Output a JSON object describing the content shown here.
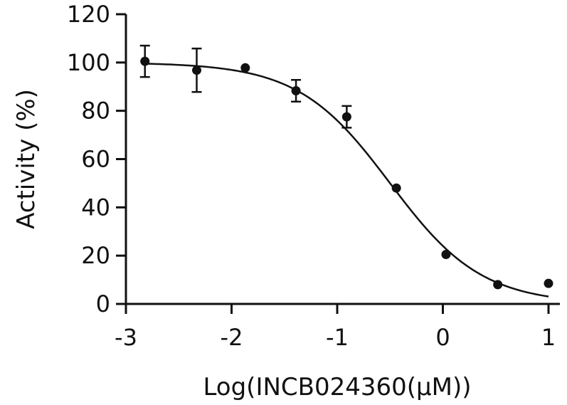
{
  "chart_data": {
    "type": "scatter",
    "title": "",
    "xlabel": "Log(INCB024360(μM))",
    "ylabel": "Activity (%)",
    "xlim": [
      -3,
      1
    ],
    "ylim": [
      0,
      120
    ],
    "x_ticks": [
      -3,
      -2,
      -1,
      0,
      1
    ],
    "y_ticks": [
      0,
      20,
      40,
      60,
      80,
      100,
      120
    ],
    "x_tick_labels": [
      "-3",
      "-2",
      "-1",
      "0",
      "1"
    ],
    "y_tick_labels": [
      "0",
      "20",
      "40",
      "60",
      "80",
      "100",
      "120"
    ],
    "grid": false,
    "legend": "none",
    "series": [
      {
        "x": [
          -2.82,
          -2.33,
          -1.87,
          -1.39,
          -0.91,
          -0.44,
          0.03,
          0.52,
          1.0
        ],
        "y": [
          100.5,
          96.8,
          97.8,
          88.3,
          77.5,
          48.0,
          20.5,
          8.0,
          8.5
        ],
        "error": [
          6.5,
          9.0,
          0,
          4.5,
          4.5,
          0,
          0,
          0,
          0
        ]
      }
    ],
    "fit_curve": {
      "model": "four-parameter logistic",
      "top": 100,
      "bottom": 0,
      "log_ic50": -0.5,
      "hill_slope": 1.0,
      "x_range": [
        -2.8,
        1.0
      ]
    }
  }
}
